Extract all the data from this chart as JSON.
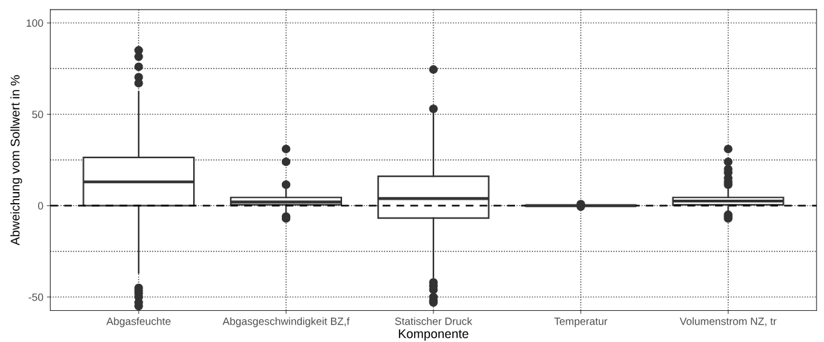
{
  "chart_data": {
    "type": "box",
    "xlabel": "Komponente",
    "ylabel": "Abweichung vom Sollwert in %",
    "categories": [
      "Abgasfeuchte",
      "Abgasgeschwindigkeit BZ,f",
      "Statischer Druck",
      "Temperatur",
      "Volumenstrom NZ, tr"
    ],
    "boxes": [
      {
        "low": -36.8,
        "q1": 0,
        "median": 13,
        "q3": 26.4,
        "high": 62.3,
        "outliers": [
          85,
          81.5,
          76,
          70.3,
          67,
          -45,
          -46.5,
          -48,
          -50,
          -53,
          -55
        ]
      },
      {
        "low": -4,
        "q1": 0.5,
        "median": 2,
        "q3": 4.5,
        "high": 10,
        "outliers": [
          31,
          24,
          11.5,
          -6,
          -7
        ]
      },
      {
        "low": -39.3,
        "q1": -6.8,
        "median": 3.9,
        "q3": 16.1,
        "high": 52.3,
        "outliers": [
          74.5,
          53,
          -42,
          -44,
          -46,
          -50,
          -52,
          -53
        ]
      },
      {
        "low": -0.5,
        "q1": -0.2,
        "median": 0,
        "q3": 0.2,
        "high": 0.5,
        "outliers": [
          0.8,
          -0.5
        ]
      },
      {
        "low": -4,
        "q1": 0.5,
        "median": 2.5,
        "q3": 4.5,
        "high": 10,
        "outliers": [
          31,
          24,
          20,
          18,
          15,
          13,
          11.5,
          -5,
          -6,
          -7
        ]
      }
    ],
    "color": "#333333",
    "ylim": [
      -57.4,
      107.3
    ],
    "yticks": [
      -50,
      {
        "value": -25,
        "label": null
      },
      0,
      {
        "value": 25,
        "label": null
      },
      50,
      {
        "value": 75,
        "label": null
      },
      100
    ],
    "grid": true,
    "ref_lines": [
      {
        "axis": "y",
        "value": 0,
        "line_style": "dashed",
        "color": "#000000"
      }
    ]
  }
}
